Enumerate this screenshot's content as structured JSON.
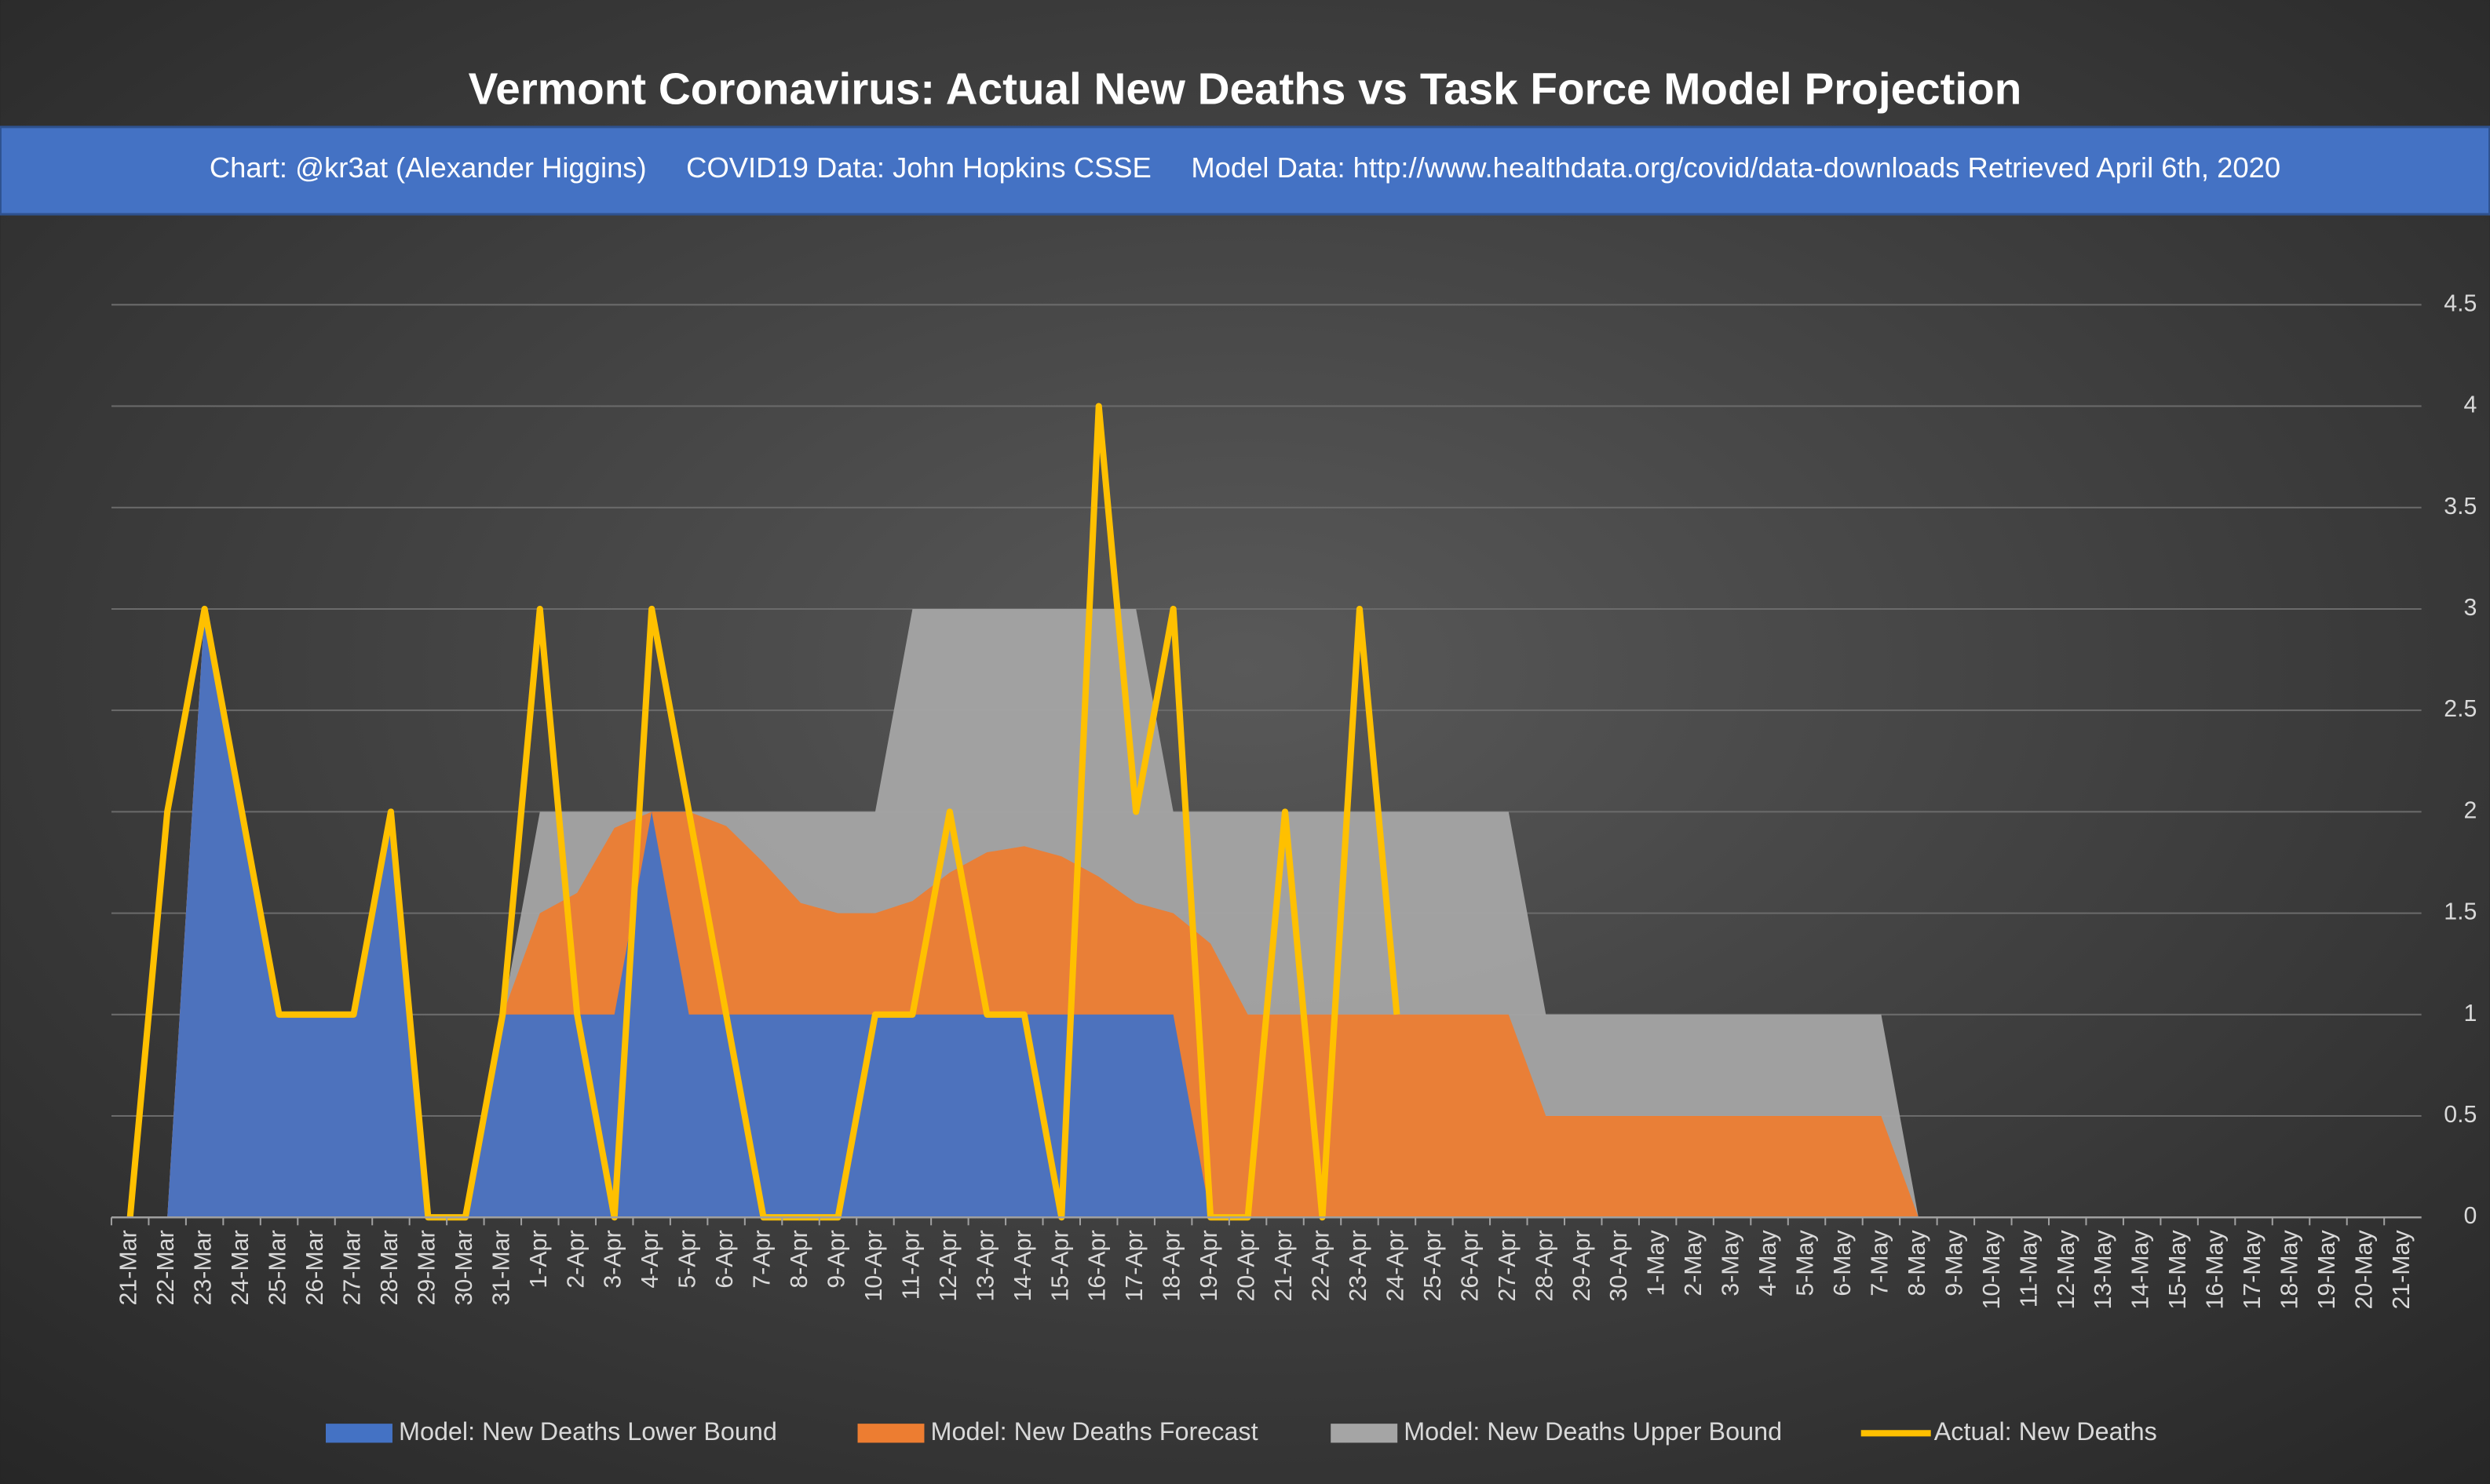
{
  "chart_data": {
    "type": "area-line",
    "title": "Vermont Coronavirus: Actual New Deaths vs Task Force Model Projection",
    "subtitle": "Chart: @kr3at (Alexander Higgins)     COVID19 Data: John Hopkins CSSE     Model Data: http://www.healthdata.org/covid/data-downloads Retrieved April 6th, 2020",
    "categories": [
      "21-Mar",
      "22-Mar",
      "23-Mar",
      "24-Mar",
      "25-Mar",
      "26-Mar",
      "27-Mar",
      "28-Mar",
      "29-Mar",
      "30-Mar",
      "31-Mar",
      "1-Apr",
      "2-Apr",
      "3-Apr",
      "4-Apr",
      "5-Apr",
      "6-Apr",
      "7-Apr",
      "8-Apr",
      "9-Apr",
      "10-Apr",
      "11-Apr",
      "12-Apr",
      "13-Apr",
      "14-Apr",
      "15-Apr",
      "16-Apr",
      "17-Apr",
      "18-Apr",
      "19-Apr",
      "20-Apr",
      "21-Apr",
      "22-Apr",
      "23-Apr",
      "24-Apr",
      "25-Apr",
      "26-Apr",
      "27-Apr",
      "28-Apr",
      "29-Apr",
      "30-Apr",
      "1-May",
      "2-May",
      "3-May",
      "4-May",
      "5-May",
      "6-May",
      "7-May",
      "8-May",
      "9-May",
      "10-May",
      "11-May",
      "12-May",
      "13-May",
      "14-May",
      "15-May",
      "16-May",
      "17-May",
      "18-May",
      "19-May",
      "20-May",
      "21-May"
    ],
    "series": [
      {
        "name": "Model: New Deaths Lower Bound",
        "color": "#4472c4",
        "kind": "area",
        "values": [
          0,
          0,
          3,
          2,
          1,
          1,
          1,
          2,
          0,
          0,
          1,
          1,
          1,
          1,
          2,
          1,
          1,
          1,
          1,
          1,
          1,
          1,
          1,
          1,
          1,
          1,
          1,
          1,
          1,
          0,
          0,
          0,
          0,
          0,
          0,
          0,
          0,
          0,
          0,
          0,
          0,
          0,
          0,
          0,
          0,
          0,
          0,
          0,
          0,
          0,
          0,
          0,
          0,
          0,
          0,
          0,
          0,
          0,
          0,
          0,
          0,
          0
        ]
      },
      {
        "name": "Model: New Deaths Forecast",
        "color": "#ed7d31",
        "kind": "area",
        "values": [
          0,
          0,
          3,
          2,
          1,
          1,
          1,
          2,
          0,
          0,
          1,
          1.5,
          1.6,
          1.92,
          2,
          2,
          1.93,
          1.75,
          1.55,
          1.5,
          1.5,
          1.56,
          1.7,
          1.8,
          1.83,
          1.78,
          1.68,
          1.55,
          1.5,
          1.35,
          1,
          1,
          1,
          1,
          1,
          1,
          1,
          1,
          0.5,
          0.5,
          0.5,
          0.5,
          0.5,
          0.5,
          0.5,
          0.5,
          0.5,
          0.5,
          0,
          0,
          0,
          0,
          0,
          0,
          0,
          0,
          0,
          0,
          0,
          0,
          0,
          0
        ]
      },
      {
        "name": "Model: New Deaths Upper Bound",
        "color": "#a5a5a5",
        "kind": "area",
        "values": [
          0,
          0,
          3,
          2,
          1,
          1,
          1,
          2,
          0,
          0,
          1,
          2,
          2,
          2,
          2,
          2,
          2,
          2,
          2,
          2,
          2,
          3,
          3,
          3,
          3,
          3,
          3,
          3,
          2,
          2,
          2,
          2,
          2,
          2,
          2,
          2,
          2,
          2,
          1,
          1,
          1,
          1,
          1,
          1,
          1,
          1,
          1,
          1,
          0,
          0,
          0,
          0,
          0,
          0,
          0,
          0,
          0,
          0,
          0,
          0,
          0,
          0
        ]
      },
      {
        "name": "Actual: New Deaths",
        "color": "#ffc000",
        "kind": "line",
        "values": [
          0,
          2,
          3,
          2,
          1,
          1,
          1,
          2,
          0,
          0,
          1,
          3,
          1,
          0,
          3,
          2,
          1,
          0,
          0,
          0,
          1,
          1,
          2,
          1,
          1,
          0,
          4,
          2,
          3,
          0,
          0,
          2,
          0,
          3,
          1,
          null,
          null,
          null,
          null,
          null,
          null,
          null,
          null,
          null,
          null,
          null,
          null,
          null,
          null,
          null,
          null,
          null,
          null,
          null,
          null,
          null,
          null,
          null,
          null,
          null,
          null,
          null
        ]
      }
    ],
    "ylim": [
      0,
      4.5
    ],
    "yticks": [
      0,
      0.5,
      1,
      1.5,
      2,
      2.5,
      3,
      3.5,
      4,
      4.5
    ],
    "grid": true,
    "legend": "bottom"
  }
}
